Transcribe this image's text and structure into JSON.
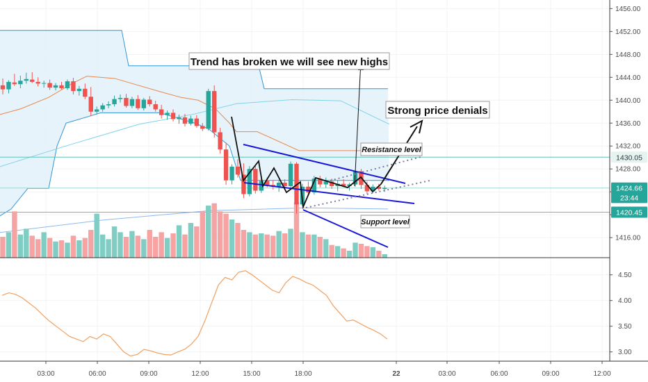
{
  "chart_data": {
    "type": "candlestick",
    "price_axis": {
      "ticks": [
        "1456.00",
        "1452.00",
        "1448.00",
        "1444.00",
        "1440.00",
        "1436.00",
        "1432.00",
        "1428.00",
        "1424.00",
        "1420.00",
        "1416.00"
      ],
      "range": [
        1412.5,
        1457.5
      ]
    },
    "price_badges": [
      {
        "label": "1430.05",
        "value": 1430.05,
        "color": "#e6f4f1",
        "text_color": "#2b3a3a"
      },
      {
        "label": "1424.66",
        "value": 1424.66,
        "color": "#26a69a",
        "text_color": "#ffffff"
      },
      {
        "label": "23:44",
        "value": 1423.0,
        "color": "#26a69a",
        "text_color": "#ffffff"
      },
      {
        "label": "1420.45",
        "value": 1420.45,
        "color": "#26a69a",
        "text_color": "#ffffff"
      }
    ],
    "time_axis": {
      "ticks": [
        "03:00",
        "06:00",
        "09:00",
        "12:00",
        "15:00",
        "18:00",
        "22",
        "03:00",
        "06:00",
        "09:00",
        "12:00"
      ],
      "bold": [
        "22"
      ]
    },
    "candles": [
      [
        1442.6,
        1443.8,
        1441.0,
        1441.9
      ],
      [
        1441.9,
        1443.5,
        1441.2,
        1443.2
      ],
      [
        1443.1,
        1444.6,
        1442.5,
        1442.8
      ],
      [
        1442.8,
        1444.3,
        1442.1,
        1443.4
      ],
      [
        1443.4,
        1444.8,
        1442.9,
        1443.7
      ],
      [
        1443.6,
        1444.9,
        1443.0,
        1443.2
      ],
      [
        1443.2,
        1444.0,
        1442.4,
        1442.9
      ],
      [
        1442.9,
        1443.4,
        1442.2,
        1443.0
      ],
      [
        1443.0,
        1443.6,
        1441.8,
        1442.2
      ],
      [
        1442.2,
        1443.0,
        1441.7,
        1442.6
      ],
      [
        1442.6,
        1443.2,
        1441.9,
        1442.1
      ],
      [
        1442.1,
        1443.6,
        1441.8,
        1443.3
      ],
      [
        1443.3,
        1443.9,
        1441.0,
        1441.6
      ],
      [
        1441.6,
        1442.5,
        1440.8,
        1442.0
      ],
      [
        1442.0,
        1442.9,
        1440.2,
        1440.6
      ],
      [
        1440.6,
        1442.3,
        1437.2,
        1438.0
      ],
      [
        1438.0,
        1438.9,
        1437.6,
        1438.4
      ],
      [
        1438.4,
        1439.5,
        1438.0,
        1439.1
      ],
      [
        1439.1,
        1439.8,
        1438.6,
        1439.3
      ],
      [
        1439.3,
        1440.8,
        1438.9,
        1440.2
      ],
      [
        1440.2,
        1441.0,
        1439.6,
        1440.4
      ],
      [
        1440.4,
        1441.1,
        1438.7,
        1439.0
      ],
      [
        1439.0,
        1440.6,
        1438.6,
        1440.2
      ],
      [
        1440.2,
        1440.9,
        1438.3,
        1438.6
      ],
      [
        1438.6,
        1440.4,
        1438.2,
        1440.1
      ],
      [
        1440.1,
        1440.7,
        1438.9,
        1439.3
      ],
      [
        1439.3,
        1439.9,
        1438.0,
        1438.4
      ],
      [
        1438.4,
        1439.2,
        1436.8,
        1437.4
      ],
      [
        1437.4,
        1438.2,
        1436.6,
        1437.8
      ],
      [
        1437.8,
        1438.4,
        1436.3,
        1436.7
      ],
      [
        1436.7,
        1437.5,
        1435.9,
        1437.0
      ],
      [
        1437.0,
        1437.6,
        1435.4,
        1435.9
      ],
      [
        1435.9,
        1437.3,
        1435.6,
        1436.8
      ],
      [
        1436.8,
        1437.4,
        1435.2,
        1435.5
      ],
      [
        1435.5,
        1436.0,
        1434.6,
        1435.0
      ],
      [
        1435.0,
        1442.0,
        1434.7,
        1441.6
      ],
      [
        1441.6,
        1442.6,
        1433.5,
        1434.4
      ],
      [
        1434.4,
        1435.2,
        1430.7,
        1431.4
      ],
      [
        1431.4,
        1432.6,
        1425.2,
        1426.0
      ],
      [
        1426.0,
        1428.8,
        1425.3,
        1428.4
      ],
      [
        1428.4,
        1429.7,
        1426.5,
        1427.0
      ],
      [
        1427.0,
        1429.0,
        1422.9,
        1423.6
      ],
      [
        1423.6,
        1428.5,
        1423.2,
        1428.0
      ],
      [
        1428.0,
        1428.6,
        1423.7,
        1424.2
      ],
      [
        1424.2,
        1426.3,
        1423.8,
        1425.9
      ],
      [
        1425.9,
        1426.5,
        1424.8,
        1425.2
      ],
      [
        1425.2,
        1426.0,
        1424.4,
        1424.9
      ],
      [
        1424.9,
        1426.1,
        1424.0,
        1425.6
      ],
      [
        1425.6,
        1426.2,
        1424.6,
        1425.0
      ],
      [
        1425.0,
        1429.3,
        1424.7,
        1428.9
      ],
      [
        1428.9,
        1429.2,
        1420.2,
        1421.8
      ],
      [
        1421.8,
        1425.4,
        1421.5,
        1424.9
      ],
      [
        1424.9,
        1425.8,
        1423.4,
        1423.9
      ],
      [
        1423.9,
        1426.8,
        1423.5,
        1426.3
      ],
      [
        1426.3,
        1426.8,
        1424.8,
        1425.3
      ],
      [
        1425.3,
        1426.5,
        1424.7,
        1425.8
      ],
      [
        1425.8,
        1426.3,
        1424.5,
        1425.0
      ],
      [
        1425.0,
        1426.0,
        1424.1,
        1425.4
      ],
      [
        1425.4,
        1426.2,
        1424.8,
        1425.0
      ],
      [
        1425.0,
        1425.6,
        1424.2,
        1425.3
      ],
      [
        1425.3,
        1427.9,
        1424.9,
        1427.6
      ],
      [
        1427.6,
        1428.0,
        1424.5,
        1425.2
      ],
      [
        1425.2,
        1425.8,
        1423.6,
        1424.1
      ],
      [
        1424.1,
        1425.3,
        1423.8,
        1424.9
      ],
      [
        1424.9,
        1425.4,
        1424.2,
        1424.5
      ],
      [
        1424.5,
        1425.1,
        1424.0,
        1424.7
      ]
    ],
    "volumes": [
      18,
      22,
      40,
      20,
      25,
      19,
      16,
      22,
      17,
      14,
      15,
      13,
      19,
      15,
      17,
      24,
      38,
      20,
      16,
      27,
      22,
      18,
      23,
      19,
      16,
      24,
      18,
      22,
      17,
      21,
      28,
      20,
      30,
      27,
      40,
      45,
      47,
      40,
      38,
      33,
      30,
      24,
      22,
      20,
      21,
      20,
      19,
      23,
      21,
      25,
      48,
      22,
      20,
      20,
      18,
      16,
      11,
      10,
      8,
      6,
      13,
      12,
      10,
      9,
      6,
      3
    ],
    "indicator": {
      "ticks": [
        "4.50",
        "4.00",
        "3.50",
        "3.00"
      ],
      "range": [
        2.82,
        4.82
      ],
      "values": [
        4.1,
        4.15,
        4.12,
        4.05,
        3.95,
        3.85,
        3.72,
        3.6,
        3.5,
        3.4,
        3.3,
        3.25,
        3.2,
        3.3,
        3.25,
        3.35,
        3.3,
        3.15,
        3.0,
        2.92,
        2.95,
        3.05,
        3.02,
        2.98,
        2.95,
        2.94,
        3.0,
        3.05,
        3.15,
        3.3,
        3.6,
        3.95,
        4.3,
        4.45,
        4.4,
        4.55,
        4.58,
        4.5,
        4.4,
        4.3,
        4.2,
        4.15,
        4.35,
        4.47,
        4.42,
        4.35,
        4.3,
        4.2,
        4.1,
        3.9,
        3.75,
        3.6,
        3.62,
        3.55,
        3.48,
        3.42,
        3.35,
        3.25
      ]
    },
    "annotations": {
      "trend_label": "Trend has broken we will see new highs",
      "denials_label": "Strong price denials",
      "resistance_label": "Resistance level",
      "support_label": "Support level"
    },
    "colors": {
      "up": "#26a69a",
      "down": "#ef5350",
      "volume_up": "#7fcdc3",
      "volume_down": "#f5a3a3",
      "channel": "#1a17d6",
      "band_upper": "#2e95d8",
      "band_fill": "#e4f2fb",
      "mid_band": "#e8884a",
      "indicator_line": "#f0a060"
    }
  }
}
